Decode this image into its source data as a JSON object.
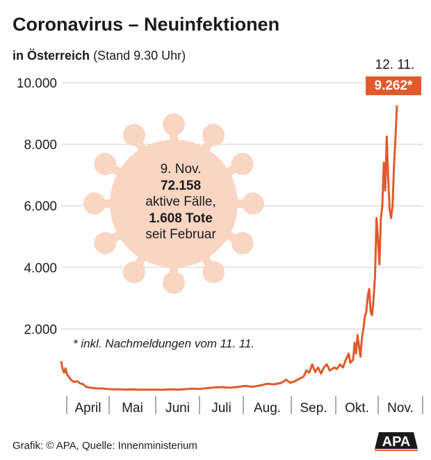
{
  "header": {
    "title": "Coronavirus – Neuinfektionen",
    "subtitle_bold": "in Österreich",
    "subtitle_rest": "(Stand 9.30 Uhr)"
  },
  "callout": {
    "date": "9. Nov.",
    "active_number": "72.158",
    "active_label": "aktive Fälle,",
    "deaths": "1.608 Tote",
    "since": "seit Februar"
  },
  "last_point": {
    "date": "12. 11.",
    "value_label": "9.262*"
  },
  "note": "* inkl. Nachmeldungen vom 11. 11.",
  "footer": {
    "source": "Grafik: © APA, Quelle: Innenministerium",
    "logo_text": "APA"
  },
  "colors": {
    "line": "#e05a2b",
    "virus": "#f9d5c2",
    "grid": "#cfcfcf"
  },
  "chart_data": {
    "type": "line",
    "title": "Coronavirus – Neuinfektionen",
    "subtitle": "in Österreich (Stand 9.30 Uhr)",
    "y_ticks": [
      "2.000",
      "4.000",
      "6.000",
      "8.000",
      "10.000"
    ],
    "y_tick_values": [
      2000,
      4000,
      6000,
      8000,
      10000
    ],
    "ylim": [
      0,
      10000
    ],
    "x_ticks": [
      "April",
      "Mai",
      "Juni",
      "Juli",
      "Aug.",
      "Sep.",
      "Okt.",
      "Nov."
    ],
    "x_range": [
      "2020-03-27",
      "2020-11-12"
    ],
    "grid": "horizontal",
    "series": [
      {
        "points": [
          [
            "2020-03-27",
            950
          ],
          [
            "2020-03-28",
            700
          ],
          [
            "2020-03-29",
            580
          ],
          [
            "2020-03-30",
            720
          ],
          [
            "2020-03-31",
            520
          ],
          [
            "2020-04-02",
            400
          ],
          [
            "2020-04-03",
            330
          ],
          [
            "2020-04-05",
            280
          ],
          [
            "2020-04-07",
            300
          ],
          [
            "2020-04-09",
            230
          ],
          [
            "2020-04-11",
            210
          ],
          [
            "2020-04-13",
            120
          ],
          [
            "2020-04-16",
            90
          ],
          [
            "2020-04-20",
            70
          ],
          [
            "2020-04-25",
            60
          ],
          [
            "2020-04-30",
            40
          ],
          [
            "2020-05-05",
            40
          ],
          [
            "2020-05-10",
            30
          ],
          [
            "2020-05-15",
            35
          ],
          [
            "2020-05-20",
            25
          ],
          [
            "2020-05-25",
            30
          ],
          [
            "2020-05-31",
            30
          ],
          [
            "2020-06-05",
            25
          ],
          [
            "2020-06-10",
            40
          ],
          [
            "2020-06-15",
            30
          ],
          [
            "2020-06-20",
            45
          ],
          [
            "2020-06-25",
            60
          ],
          [
            "2020-06-30",
            50
          ],
          [
            "2020-07-05",
            80
          ],
          [
            "2020-07-10",
            100
          ],
          [
            "2020-07-15",
            110
          ],
          [
            "2020-07-20",
            90
          ],
          [
            "2020-07-25",
            110
          ],
          [
            "2020-07-31",
            150
          ],
          [
            "2020-08-05",
            120
          ],
          [
            "2020-08-10",
            160
          ],
          [
            "2020-08-15",
            220
          ],
          [
            "2020-08-20",
            200
          ],
          [
            "2020-08-25",
            250
          ],
          [
            "2020-08-28",
            350
          ],
          [
            "2020-08-31",
            250
          ],
          [
            "2020-09-03",
            300
          ],
          [
            "2020-09-06",
            380
          ],
          [
            "2020-09-09",
            450
          ],
          [
            "2020-09-11",
            650
          ],
          [
            "2020-09-13",
            580
          ],
          [
            "2020-09-15",
            850
          ],
          [
            "2020-09-17",
            600
          ],
          [
            "2020-09-19",
            750
          ],
          [
            "2020-09-21",
            550
          ],
          [
            "2020-09-23",
            750
          ],
          [
            "2020-09-25",
            850
          ],
          [
            "2020-09-27",
            650
          ],
          [
            "2020-09-30",
            750
          ],
          [
            "2020-10-02",
            700
          ],
          [
            "2020-10-04",
            850
          ],
          [
            "2020-10-06",
            750
          ],
          [
            "2020-10-08",
            1000
          ],
          [
            "2020-10-10",
            1200
          ],
          [
            "2020-10-11",
            900
          ],
          [
            "2020-10-13",
            1000
          ],
          [
            "2020-10-14",
            1550
          ],
          [
            "2020-10-15",
            1200
          ],
          [
            "2020-10-16",
            1800
          ],
          [
            "2020-10-17",
            1450
          ],
          [
            "2020-10-18",
            1100
          ],
          [
            "2020-10-19",
            1700
          ],
          [
            "2020-10-20",
            2000
          ],
          [
            "2020-10-21",
            2400
          ],
          [
            "2020-10-22",
            2550
          ],
          [
            "2020-10-23",
            3050
          ],
          [
            "2020-10-24",
            3300
          ],
          [
            "2020-10-25",
            2550
          ],
          [
            "2020-10-26",
            2450
          ],
          [
            "2020-10-27",
            3000
          ],
          [
            "2020-10-28",
            3700
          ],
          [
            "2020-10-29",
            5600
          ],
          [
            "2020-10-30",
            4900
          ],
          [
            "2020-10-31",
            4100
          ],
          [
            "2020-11-01",
            5600
          ],
          [
            "2020-11-02",
            6000
          ],
          [
            "2020-11-03",
            7400
          ],
          [
            "2020-11-04",
            6500
          ],
          [
            "2020-11-05",
            8250
          ],
          [
            "2020-11-06",
            6900
          ],
          [
            "2020-11-07",
            5900
          ],
          [
            "2020-11-08",
            5600
          ],
          [
            "2020-11-09",
            6000
          ],
          [
            "2020-11-10",
            7300
          ],
          [
            "2020-11-11",
            8200
          ],
          [
            "2020-11-12",
            9262
          ]
        ]
      }
    ]
  }
}
